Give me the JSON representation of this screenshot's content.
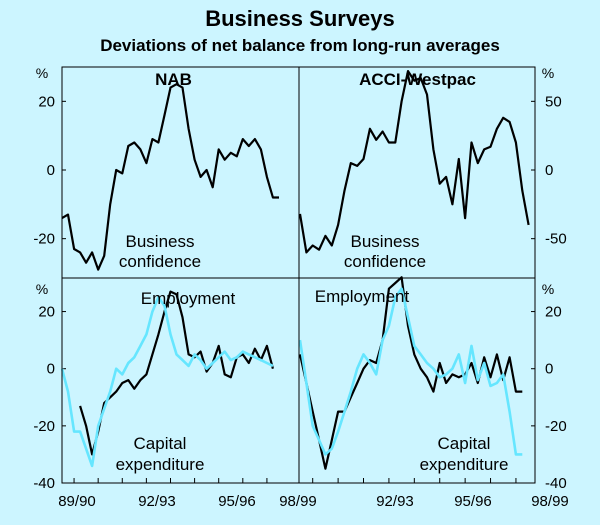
{
  "title": "Business Surveys",
  "subtitle": "Deviations of net balance from long-run averages",
  "colors": {
    "background": "#ccf5ff",
    "black_series": "#000000",
    "cyan_series": "#66e6ff"
  },
  "x_axis_labels": [
    "89/90",
    "92/93",
    "95/96",
    "98/99",
    "92/93",
    "95/96",
    "98/99"
  ],
  "chart_data": [
    {
      "type": "line",
      "panel": "top-left",
      "title": "NAB",
      "unit_label": "%",
      "ylim": [
        -30,
        30
      ],
      "yticks": [
        20,
        0,
        -20
      ],
      "annotation": [
        "Business",
        "confidence"
      ],
      "series": [
        {
          "name": "Business confidence",
          "color": "#000000",
          "x": [
            1989.5,
            1989.75,
            1990,
            1990.25,
            1990.5,
            1990.75,
            1991,
            1991.25,
            1991.5,
            1991.75,
            1992,
            1992.25,
            1992.5,
            1992.75,
            1993,
            1993.25,
            1993.5,
            1993.75,
            1994,
            1994.25,
            1994.5,
            1994.75,
            1995,
            1995.25,
            1995.5,
            1995.75,
            1996,
            1996.25,
            1996.5,
            1996.75,
            1997,
            1997.25,
            1997.5,
            1997.75,
            1998,
            1998.25,
            1998.5
          ],
          "values": [
            -14,
            -13,
            -23,
            -24,
            -27,
            -24,
            -29,
            -25,
            -10,
            0,
            -1,
            7,
            8,
            6,
            2,
            9,
            8,
            16,
            24,
            25,
            24,
            12,
            3,
            -2,
            0,
            -5,
            6,
            3,
            5,
            4,
            9,
            7,
            9,
            6,
            -2,
            -8,
            -8
          ]
        }
      ]
    },
    {
      "type": "line",
      "panel": "top-right",
      "title": "ACCI-Westpac",
      "unit_label": "%",
      "ylim": [
        -75,
        75
      ],
      "yticks": [
        50,
        0,
        -50
      ],
      "annotation": [
        "Business",
        "confidence"
      ],
      "series": [
        {
          "name": "Business confidence",
          "color": "#000000",
          "x": [
            1989.5,
            1989.75,
            1990,
            1990.25,
            1990.5,
            1990.75,
            1991,
            1991.25,
            1991.5,
            1991.75,
            1992,
            1992.25,
            1992.5,
            1992.75,
            1993,
            1993.25,
            1993.5,
            1993.75,
            1994,
            1994.25,
            1994.5,
            1994.75,
            1995,
            1995.25,
            1995.5,
            1995.75,
            1996,
            1996.25,
            1996.5,
            1996.75,
            1997,
            1997.25,
            1997.5,
            1997.75,
            1998,
            1998.25,
            1998.5
          ],
          "values": [
            -32,
            -60,
            -55,
            -58,
            -48,
            -55,
            -40,
            -15,
            5,
            3,
            8,
            30,
            22,
            28,
            20,
            20,
            50,
            72,
            65,
            67,
            55,
            15,
            -10,
            -5,
            -25,
            8,
            -35,
            20,
            5,
            15,
            17,
            30,
            38,
            35,
            20,
            -15,
            -40
          ]
        }
      ]
    },
    {
      "type": "line",
      "panel": "bottom-left",
      "title": "",
      "unit_label": "%",
      "ylim": [
        -40,
        30
      ],
      "yticks": [
        20,
        0,
        -20,
        -40
      ],
      "annotations": {
        "employment": "Employment",
        "capex": [
          "Capital",
          "expenditure"
        ]
      },
      "series": [
        {
          "name": "Employment",
          "color": "#000000",
          "x": [
            1990.25,
            1990.5,
            1990.75,
            1991,
            1991.25,
            1991.5,
            1991.75,
            1992,
            1992.25,
            1992.5,
            1992.75,
            1993,
            1993.25,
            1993.5,
            1993.75,
            1994,
            1994.25,
            1994.5,
            1994.75,
            1995,
            1995.25,
            1995.5,
            1995.75,
            1996,
            1996.25,
            1996.5,
            1996.75,
            1997,
            1997.25,
            1997.5,
            1997.75,
            1998,
            1998.25
          ],
          "values": [
            -13,
            -20,
            -30,
            -22,
            -12,
            -10,
            -8,
            -5,
            -4,
            -7,
            -4,
            -2,
            5,
            12,
            20,
            27,
            26,
            18,
            5,
            4,
            6,
            -1,
            2,
            8,
            -2,
            -3,
            4,
            5,
            2,
            7,
            3,
            8,
            0
          ]
        },
        {
          "name": "Capital expenditure",
          "color": "#66e6ff",
          "x": [
            1989.5,
            1989.75,
            1990,
            1990.25,
            1990.5,
            1990.75,
            1991,
            1991.25,
            1991.5,
            1991.75,
            1992,
            1992.25,
            1992.5,
            1992.75,
            1993,
            1993.25,
            1993.5,
            1993.75,
            1994,
            1994.25,
            1994.5,
            1994.75,
            1995,
            1995.25,
            1995.5,
            1995.75,
            1996,
            1996.25,
            1996.5,
            1996.75,
            1997,
            1997.25,
            1997.5,
            1997.75,
            1998,
            1998.25
          ],
          "values": [
            0,
            -8,
            -22,
            -22,
            -28,
            -34,
            -20,
            -14,
            -8,
            0,
            -2,
            2,
            4,
            8,
            12,
            20,
            25,
            22,
            12,
            5,
            3,
            1,
            5,
            3,
            0,
            2,
            4,
            6,
            3,
            4,
            6,
            5,
            4,
            3,
            2,
            1
          ]
        }
      ]
    },
    {
      "type": "line",
      "panel": "bottom-right",
      "title": "",
      "unit_label": "%",
      "ylim": [
        -40,
        30
      ],
      "yticks": [
        20,
        0,
        -20,
        -40
      ],
      "annotations": {
        "employment": "Employment",
        "capex": [
          "Capital",
          "expenditure"
        ]
      },
      "series": [
        {
          "name": "Employment",
          "color": "#000000",
          "x": [
            1989.5,
            1989.75,
            1990,
            1990.25,
            1990.5,
            1990.75,
            1991,
            1991.25,
            1991.5,
            1991.75,
            1992,
            1992.25,
            1992.5,
            1992.75,
            1993,
            1993.25,
            1993.5,
            1993.75,
            1994,
            1994.25,
            1994.5,
            1994.75,
            1995,
            1995.25,
            1995.5,
            1995.75,
            1996,
            1996.25,
            1996.5,
            1996.75,
            1997,
            1997.25,
            1997.5,
            1997.75,
            1998,
            1998.25
          ],
          "values": [
            5,
            -5,
            -15,
            -25,
            -35,
            -25,
            -15,
            -15,
            -10,
            -5,
            0,
            3,
            2,
            10,
            28,
            30,
            32,
            15,
            5,
            0,
            -3,
            -8,
            2,
            -5,
            -2,
            -3,
            -2,
            2,
            -5,
            4,
            -3,
            5,
            -4,
            4,
            -8,
            -8
          ]
        },
        {
          "name": "Capital expenditure",
          "color": "#66e6ff",
          "x": [
            1989.5,
            1989.75,
            1990,
            1990.25,
            1990.5,
            1990.75,
            1991,
            1991.25,
            1991.5,
            1991.75,
            1992,
            1992.25,
            1992.5,
            1992.75,
            1993,
            1993.25,
            1993.5,
            1993.75,
            1994,
            1994.25,
            1994.5,
            1994.75,
            1995,
            1995.25,
            1995.5,
            1995.75,
            1996,
            1996.25,
            1996.5,
            1996.75,
            1997,
            1997.25,
            1997.5,
            1997.75,
            1998,
            1998.25
          ],
          "values": [
            10,
            -5,
            -20,
            -25,
            -30,
            -28,
            -22,
            -15,
            -8,
            0,
            5,
            2,
            -2,
            10,
            15,
            25,
            28,
            18,
            8,
            5,
            2,
            0,
            -3,
            -2,
            0,
            5,
            -5,
            8,
            -4,
            2,
            -6,
            -5,
            -2,
            -15,
            -30,
            -30
          ]
        }
      ]
    }
  ]
}
